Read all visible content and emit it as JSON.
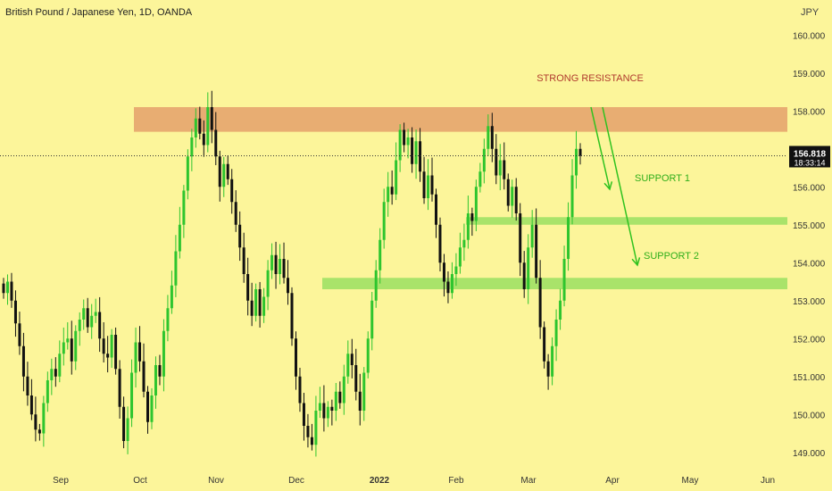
{
  "header": {
    "title": "British Pound / Japanese Yen, 1D, OANDA",
    "currency": "JPY"
  },
  "price_label": {
    "price": "156.818",
    "countdown": "18:33:14"
  },
  "colors": {
    "background": "#fcf59a",
    "up_candle": "#2ec52e",
    "down_candle": "#111111",
    "resistance_zone": "#e8ad72",
    "support_zone": "#a9e36a",
    "resistance_text": "#b03a2e",
    "support_text": "#2fae1a",
    "arrow": "#2fc21f",
    "price_tag": "#111111"
  },
  "chart_data": {
    "type": "candlestick",
    "title": "British Pound / Japanese Yen, 1D, OANDA",
    "ylabel": "JPY",
    "ylim": [
      148.5,
      160.5
    ],
    "y_ticks": [
      "149.000",
      "150.000",
      "151.000",
      "152.000",
      "153.000",
      "154.000",
      "155.000",
      "156.000",
      "157.000",
      "158.000",
      "159.000",
      "160.000"
    ],
    "x_ticks": [
      "Sep",
      "Oct",
      "Nov",
      "Dec",
      "2022",
      "Feb",
      "Mar",
      "Apr",
      "May",
      "Jun"
    ],
    "grid": false,
    "last_price": 156.818,
    "annotations": [
      {
        "kind": "zone",
        "label": "STRONG RESISTANCE",
        "y_low": 157.45,
        "y_high": 158.1
      },
      {
        "kind": "zone",
        "label": "SUPPORT 1",
        "y_low": 155.0,
        "y_high": 155.2
      },
      {
        "kind": "zone",
        "label": "SUPPORT 2",
        "y_low": 153.3,
        "y_high": 153.6
      }
    ],
    "closes": [
      153.2,
      153.5,
      153.0,
      152.4,
      151.8,
      151.0,
      150.5,
      150.0,
      149.6,
      149.5,
      150.3,
      150.9,
      151.2,
      151.0,
      151.6,
      151.9,
      152.0,
      151.4,
      152.2,
      152.5,
      152.8,
      152.3,
      152.6,
      152.7,
      152.0,
      151.6,
      151.5,
      152.1,
      151.2,
      150.2,
      149.3,
      149.9,
      151.1,
      151.9,
      151.4,
      150.6,
      149.8,
      150.5,
      151.3,
      151.0,
      152.2,
      152.8,
      153.4,
      154.3,
      155.0,
      155.9,
      156.8,
      157.3,
      157.8,
      157.4,
      157.1,
      158.1,
      157.5,
      156.8,
      156.0,
      156.6,
      156.2,
      155.6,
      155.0,
      154.4,
      153.7,
      153.0,
      152.6,
      153.3,
      152.6,
      153.1,
      153.8,
      154.2,
      153.7,
      154.1,
      153.6,
      153.2,
      152.0,
      151.0,
      150.3,
      149.7,
      149.4,
      149.2,
      150.1,
      150.3,
      149.9,
      150.2,
      150.1,
      150.6,
      150.3,
      151.0,
      151.6,
      151.3,
      150.6,
      150.1,
      151.1,
      152.0,
      153.0,
      153.8,
      154.6,
      155.6,
      156.0,
      155.8,
      156.7,
      157.5,
      157.1,
      157.3,
      156.6,
      157.2,
      156.4,
      155.7,
      156.3,
      155.8,
      155.0,
      154.0,
      153.5,
      153.2,
      153.7,
      153.9,
      154.4,
      154.6,
      155.3,
      155.1,
      156.0,
      156.4,
      157.0,
      157.6,
      157.0,
      156.3,
      156.7,
      156.2,
      155.5,
      156.0,
      155.3,
      154.0,
      153.3,
      154.4,
      155.0,
      153.6,
      152.3,
      151.4,
      151.0,
      151.8,
      152.5,
      153.0,
      154.1,
      155.2,
      156.3,
      157.0,
      156.818
    ]
  }
}
